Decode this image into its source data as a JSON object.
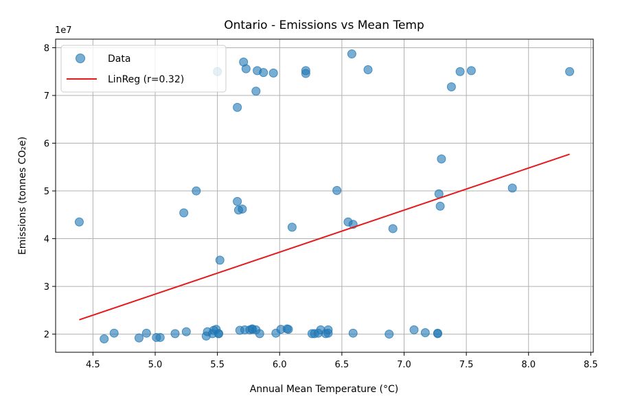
{
  "chart_data": {
    "type": "scatter",
    "title": "Ontario - Emissions vs Mean Temp",
    "xlabel": "Annual Mean Temperature (°C)",
    "ylabel": "Emissions (tonnes CO₂e)",
    "y_exponent_label": "1e7",
    "xlim": [
      4.2,
      8.52
    ],
    "ylim": [
      1.62,
      8.18
    ],
    "x_ticks": [
      4.5,
      5.0,
      5.5,
      6.0,
      6.5,
      7.0,
      7.5,
      8.0,
      8.5
    ],
    "x_tick_labels": [
      "4.5",
      "5.0",
      "5.5",
      "6.0",
      "6.5",
      "7.0",
      "7.5",
      "8.0",
      "8.5"
    ],
    "y_ticks": [
      2,
      3,
      4,
      5,
      6,
      7,
      8
    ],
    "y_tick_labels": [
      "2",
      "3",
      "4",
      "5",
      "6",
      "7",
      "8"
    ],
    "grid": true,
    "legend_position": "top-left",
    "series": [
      {
        "name": "Data",
        "kind": "scatter",
        "color": "#1f77b4",
        "x": [
          4.39,
          4.59,
          4.67,
          4.87,
          4.93,
          5.01,
          5.04,
          5.16,
          5.23,
          5.25,
          5.33,
          5.41,
          5.42,
          5.46,
          5.47,
          5.49,
          5.51,
          5.51,
          5.52,
          5.5,
          5.66,
          5.66,
          5.67,
          5.68,
          5.7,
          5.71,
          5.72,
          5.73,
          5.76,
          5.78,
          5.78,
          5.81,
          5.82,
          5.81,
          5.84,
          5.87,
          5.95,
          5.97,
          6.01,
          6.06,
          6.07,
          6.1,
          6.21,
          6.21,
          6.26,
          6.28,
          6.31,
          6.33,
          6.37,
          6.39,
          6.39,
          6.46,
          6.55,
          6.58,
          6.59,
          6.59,
          6.71,
          6.88,
          6.91,
          7.08,
          7.17,
          7.27,
          7.27,
          7.28,
          7.29,
          7.3,
          7.38,
          7.45,
          7.54,
          7.87,
          8.33
        ],
        "y": [
          4.35,
          1.9,
          2.02,
          1.92,
          2.02,
          1.93,
          1.93,
          2.01,
          4.54,
          2.05,
          5.0,
          1.96,
          2.05,
          2.01,
          2.08,
          2.1,
          2.01,
          2.01,
          3.55,
          7.5,
          6.75,
          4.78,
          4.6,
          2.08,
          4.62,
          7.7,
          2.09,
          7.56,
          2.09,
          2.11,
          2.1,
          7.09,
          7.52,
          2.09,
          2.01,
          7.48,
          7.47,
          2.02,
          2.1,
          2.11,
          2.1,
          4.24,
          7.46,
          7.52,
          2.01,
          2.01,
          2.02,
          2.09,
          2.01,
          2.09,
          2.02,
          5.01,
          4.35,
          7.87,
          4.3,
          2.02,
          7.54,
          2.0,
          4.21,
          2.09,
          2.03,
          2.02,
          2.01,
          4.94,
          4.68,
          5.67,
          7.18,
          7.5,
          7.52,
          5.06,
          7.5
        ]
      },
      {
        "name": "LinReg (r=0.32)",
        "kind": "line",
        "color": "#e41a1c",
        "x": [
          4.39,
          8.33
        ],
        "y": [
          2.3,
          5.77
        ]
      }
    ]
  }
}
